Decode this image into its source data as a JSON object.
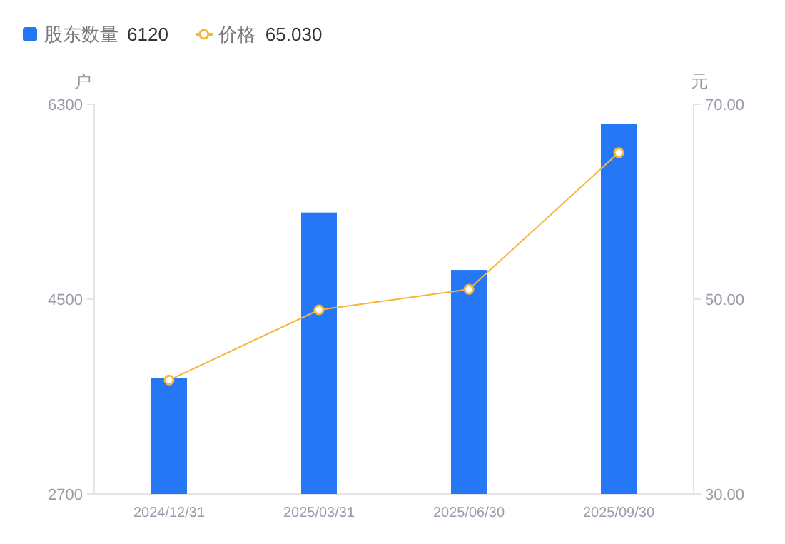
{
  "chart_data": {
    "type": "bar",
    "categories": [
      "2024/12/31",
      "2025/03/31",
      "2025/06/30",
      "2025/09/30"
    ],
    "series": [
      {
        "name": "股东数量",
        "color": "#2577f5",
        "values": [
          3770,
          5300,
          4770,
          6120
        ]
      },
      {
        "name": "价格",
        "type": "line",
        "axis": "y2",
        "color": "#f5b73b",
        "marker": "circle",
        "line_style": "solid",
        "values": [
          41.7,
          48.9,
          51.0,
          65.03
        ]
      }
    ],
    "ylabel": "户",
    "y2label": "元",
    "ylim": [
      2700,
      6300
    ],
    "yticks": [
      2700,
      4500,
      6300
    ],
    "y2lim": [
      30,
      70
    ],
    "y2ticks": [
      {
        "value": 30,
        "label": "30.00"
      },
      {
        "value": 50,
        "label": "50.00"
      },
      {
        "value": 70,
        "label": "70.00"
      }
    ],
    "annotations": [
      "6120",
      "65.030"
    ],
    "legend": "top left",
    "grid": false
  }
}
